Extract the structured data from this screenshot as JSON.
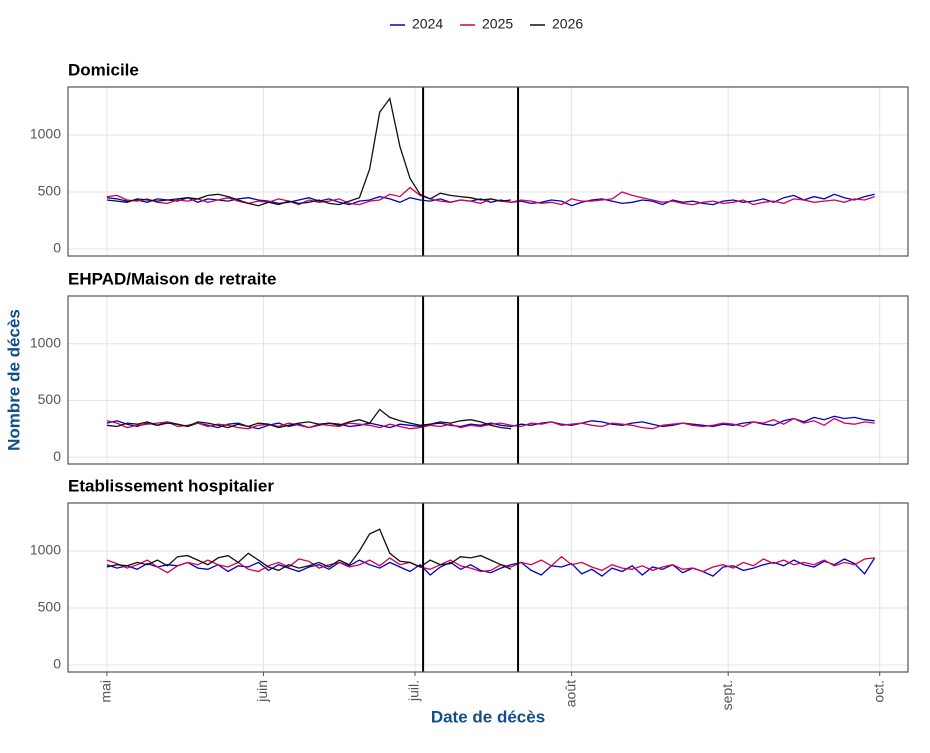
{
  "ylabel": "Nombre de décès",
  "xlabel": "Date de décès",
  "chart_data": [
    {
      "type": "line",
      "title": "Domicile",
      "x": [
        0,
        2,
        4,
        6,
        8,
        10,
        12,
        14,
        16,
        18,
        20,
        22,
        24,
        26,
        28,
        30,
        32,
        34,
        36,
        38,
        40,
        42,
        44,
        46,
        48,
        50,
        52,
        54,
        56,
        58,
        60,
        62,
        64,
        66,
        68,
        70,
        72,
        74,
        76,
        78,
        80,
        82,
        84,
        86,
        88,
        90,
        92,
        94,
        96,
        98,
        100,
        102,
        104,
        106,
        108,
        110,
        112,
        114,
        116,
        118,
        120,
        122,
        124,
        126,
        128,
        130,
        132,
        134,
        136,
        138,
        140,
        142,
        144,
        146,
        148,
        150,
        152
      ],
      "xlim": [
        -7.7,
        158.6
      ],
      "ylim": [
        -61,
        1421
      ],
      "yticks": [
        0,
        500,
        1000
      ],
      "grid": true,
      "vlines": [
        62.6,
        81.4
      ],
      "series": [
        {
          "name": "2024",
          "color": "#0000cc",
          "values": [
            450,
            440,
            420,
            430,
            410,
            440,
            430,
            420,
            450,
            410,
            440,
            430,
            420,
            440,
            450,
            430,
            420,
            400,
            410,
            430,
            450,
            420,
            440,
            410,
            390,
            420,
            430,
            460,
            440,
            410,
            450,
            430,
            420,
            440,
            410,
            430,
            420,
            440,
            410,
            430,
            410,
            420,
            400,
            410,
            430,
            420,
            380,
            410,
            430,
            440,
            420,
            400,
            410,
            430,
            420,
            390,
            430,
            410,
            420,
            400,
            390,
            420,
            430,
            410,
            420,
            440,
            410,
            450,
            470,
            430,
            460,
            440,
            480,
            450,
            430,
            460,
            480
          ]
        },
        {
          "name": "2025",
          "color": "#d6004e",
          "values": [
            460,
            470,
            430,
            420,
            440,
            410,
            400,
            430,
            420,
            440,
            410,
            430,
            450,
            420,
            400,
            420,
            410,
            440,
            420,
            390,
            430,
            410,
            420,
            440,
            400,
            390,
            420,
            430,
            480,
            460,
            540,
            470,
            440,
            420,
            410,
            430,
            420,
            400,
            440,
            420,
            410,
            430,
            420,
            400,
            410,
            390,
            440,
            420,
            420,
            430,
            440,
            500,
            470,
            450,
            430,
            410,
            420,
            400,
            390,
            410,
            420,
            400,
            410,
            430,
            390,
            410,
            420,
            400,
            440,
            430,
            410,
            420,
            430,
            410,
            440,
            430,
            460
          ]
        },
        {
          "name": "2026",
          "color": "#111111",
          "values": [
            430,
            420,
            410,
            440,
            430,
            420,
            430,
            440,
            450,
            440,
            470,
            480,
            460,
            430,
            400,
            380,
            410,
            390,
            420,
            400,
            410,
            430,
            400,
            390,
            420,
            450,
            700,
            1200,
            1320,
            900,
            620,
            480,
            440,
            490,
            470,
            460,
            450,
            430,
            440,
            420,
            430,
            null,
            null,
            null,
            null,
            null,
            null,
            null,
            null,
            null,
            null,
            null,
            null,
            null,
            null,
            null,
            null,
            null,
            null,
            null,
            null,
            null,
            null,
            null,
            null,
            null,
            null,
            null,
            null,
            null,
            null,
            null,
            null,
            null,
            null,
            null,
            null
          ]
        }
      ]
    },
    {
      "type": "line",
      "title": "EHPAD/Maison de retraite",
      "x": [
        0,
        2,
        4,
        6,
        8,
        10,
        12,
        14,
        16,
        18,
        20,
        22,
        24,
        26,
        28,
        30,
        32,
        34,
        36,
        38,
        40,
        42,
        44,
        46,
        48,
        50,
        52,
        54,
        56,
        58,
        60,
        62,
        64,
        66,
        68,
        70,
        72,
        74,
        76,
        78,
        80,
        82,
        84,
        86,
        88,
        90,
        92,
        94,
        96,
        98,
        100,
        102,
        104,
        106,
        108,
        110,
        112,
        114,
        116,
        118,
        120,
        122,
        124,
        126,
        128,
        130,
        132,
        134,
        136,
        138,
        140,
        142,
        144,
        146,
        148,
        150,
        152
      ],
      "xlim": [
        -7.7,
        158.6
      ],
      "ylim": [
        -61,
        1421
      ],
      "yticks": [
        0,
        500,
        1000
      ],
      "grid": true,
      "vlines": [
        62.6,
        81.4
      ],
      "series": [
        {
          "name": "2024",
          "color": "#0000cc",
          "values": [
            300,
            320,
            290,
            270,
            300,
            280,
            310,
            290,
            270,
            300,
            280,
            260,
            290,
            300,
            270,
            250,
            280,
            300,
            270,
            290,
            260,
            280,
            300,
            290,
            270,
            280,
            300,
            280,
            260,
            290,
            280,
            270,
            290,
            300,
            280,
            270,
            290,
            280,
            300,
            280,
            270,
            290,
            280,
            300,
            310,
            290,
            280,
            300,
            320,
            310,
            290,
            280,
            300,
            310,
            290,
            270,
            280,
            300,
            290,
            280,
            270,
            290,
            280,
            300,
            310,
            290,
            280,
            320,
            340,
            310,
            350,
            330,
            360,
            340,
            350,
            330,
            320
          ]
        },
        {
          "name": "2025",
          "color": "#d6004e",
          "values": [
            320,
            300,
            260,
            280,
            290,
            300,
            310,
            270,
            280,
            300,
            270,
            290,
            280,
            260,
            250,
            280,
            290,
            270,
            300,
            280,
            260,
            290,
            280,
            270,
            300,
            290,
            280,
            260,
            290,
            270,
            250,
            260,
            280,
            270,
            290,
            260,
            280,
            270,
            290,
            300,
            280,
            270,
            300,
            290,
            310,
            280,
            290,
            300,
            280,
            270,
            300,
            290,
            280,
            260,
            250,
            280,
            290,
            300,
            280,
            270,
            280,
            300,
            290,
            270,
            310,
            300,
            330,
            290,
            340,
            300,
            320,
            280,
            340,
            300,
            290,
            310,
            300
          ]
        },
        {
          "name": "2026",
          "color": "#111111",
          "values": [
            280,
            270,
            300,
            290,
            310,
            280,
            300,
            290,
            270,
            310,
            300,
            280,
            260,
            290,
            270,
            300,
            290,
            260,
            280,
            300,
            310,
            290,
            300,
            280,
            310,
            330,
            300,
            420,
            350,
            320,
            300,
            280,
            290,
            310,
            300,
            320,
            330,
            310,
            280,
            260,
            250,
            null,
            null,
            null,
            null,
            null,
            null,
            null,
            null,
            null,
            null,
            null,
            null,
            null,
            null,
            null,
            null,
            null,
            null,
            null,
            null,
            null,
            null,
            null,
            null,
            null,
            null,
            null,
            null,
            null,
            null,
            null,
            null,
            null,
            null,
            null,
            null
          ]
        }
      ]
    },
    {
      "type": "line",
      "title": "Etablissement hospitalier",
      "x": [
        0,
        2,
        4,
        6,
        8,
        10,
        12,
        14,
        16,
        18,
        20,
        22,
        24,
        26,
        28,
        30,
        32,
        34,
        36,
        38,
        40,
        42,
        44,
        46,
        48,
        50,
        52,
        54,
        56,
        58,
        60,
        62,
        64,
        66,
        68,
        70,
        72,
        74,
        76,
        78,
        80,
        82,
        84,
        86,
        88,
        90,
        92,
        94,
        96,
        98,
        100,
        102,
        104,
        106,
        108,
        110,
        112,
        114,
        116,
        118,
        120,
        122,
        124,
        126,
        128,
        130,
        132,
        134,
        136,
        138,
        140,
        142,
        144,
        146,
        148,
        150,
        152
      ],
      "xlim": [
        -7.7,
        158.6
      ],
      "ylim": [
        -61,
        1421
      ],
      "yticks": [
        0,
        500,
        1000
      ],
      "grid": true,
      "vlines": [
        62.6,
        81.4
      ],
      "xticks": [
        {
          "value": 0,
          "label": "mai"
        },
        {
          "value": 31,
          "label": "juin"
        },
        {
          "value": 61,
          "label": "juil."
        },
        {
          "value": 92,
          "label": "août"
        },
        {
          "value": 123,
          "label": "sept."
        },
        {
          "value": 153,
          "label": "oct."
        }
      ],
      "series": [
        {
          "name": "2024",
          "color": "#0000cc",
          "values": [
            880,
            850,
            870,
            840,
            890,
            860,
            880,
            870,
            900,
            850,
            840,
            880,
            820,
            870,
            860,
            900,
            830,
            880,
            850,
            820,
            860,
            880,
            840,
            900,
            870,
            920,
            880,
            850,
            900,
            860,
            820,
            880,
            790,
            860,
            900,
            840,
            880,
            830,
            810,
            850,
            880,
            900,
            830,
            790,
            870,
            860,
            890,
            800,
            840,
            780,
            850,
            820,
            870,
            790,
            860,
            840,
            880,
            810,
            850,
            820,
            780,
            860,
            870,
            830,
            850,
            880,
            900,
            870,
            920,
            880,
            860,
            910,
            880,
            930,
            890,
            800,
            940
          ]
        },
        {
          "name": "2025",
          "color": "#d6004e",
          "values": [
            920,
            890,
            850,
            880,
            920,
            860,
            810,
            870,
            900,
            880,
            920,
            880,
            860,
            900,
            840,
            820,
            870,
            900,
            860,
            930,
            910,
            850,
            880,
            900,
            860,
            880,
            920,
            870,
            940,
            880,
            900,
            860,
            840,
            880,
            920,
            870,
            850,
            820,
            830,
            880,
            860,
            900,
            880,
            920,
            870,
            950,
            880,
            900,
            860,
            830,
            880,
            850,
            840,
            870,
            830,
            860,
            880,
            840,
            850,
            820,
            860,
            880,
            850,
            900,
            870,
            930,
            890,
            920,
            880,
            900,
            880,
            920,
            870,
            900,
            880,
            930,
            940
          ]
        },
        {
          "name": "2026",
          "color": "#111111",
          "values": [
            860,
            880,
            870,
            900,
            880,
            920,
            870,
            950,
            960,
            920,
            880,
            940,
            960,
            900,
            980,
            920,
            860,
            830,
            880,
            850,
            870,
            900,
            860,
            920,
            880,
            1000,
            1150,
            1190,
            980,
            910,
            900,
            860,
            920,
            880,
            890,
            950,
            940,
            960,
            920,
            880,
            840,
            null,
            null,
            null,
            null,
            null,
            null,
            null,
            null,
            null,
            null,
            null,
            null,
            null,
            null,
            null,
            null,
            null,
            null,
            null,
            null,
            null,
            null,
            null,
            null,
            null,
            null,
            null,
            null,
            null,
            null,
            null,
            null,
            null,
            null,
            null,
            null
          ]
        }
      ]
    }
  ]
}
